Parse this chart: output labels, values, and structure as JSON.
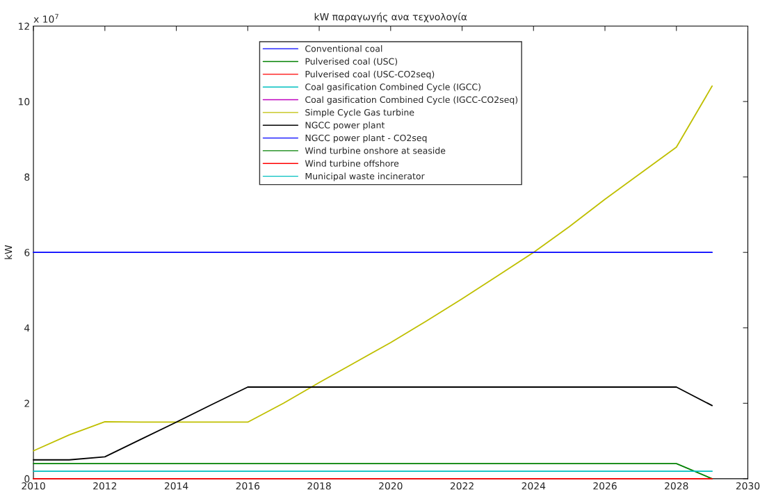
{
  "chart_data": {
    "type": "line",
    "title": "kW παραγωγής ανα τεχνολογία",
    "ylabel": "kW",
    "annotations": [
      "x 10$^{7}$"
    ],
    "x": [
      2010,
      2011,
      2012,
      2013,
      2014,
      2015,
      2016,
      2017,
      2018,
      2019,
      2020,
      2021,
      2022,
      2023,
      2024,
      2025,
      2026,
      2027,
      2028,
      2029
    ],
    "xlim": [
      2010,
      2030
    ],
    "xticks": [
      2010,
      2012,
      2014,
      2016,
      2018,
      2020,
      2022,
      2024,
      2026,
      2028,
      2030
    ],
    "ylim": [
      0,
      12
    ],
    "yticks": [
      0,
      2,
      4,
      6,
      8,
      10,
      12
    ],
    "grid": false,
    "legend": "top",
    "line_style": "solid",
    "marker": "none",
    "series": [
      {
        "name": "Conventional coal",
        "color": "#0000ff",
        "values": [
          null,
          null,
          null,
          null,
          null,
          null,
          null,
          null,
          null,
          null,
          null,
          null,
          null,
          null,
          null,
          null,
          null,
          null,
          null,
          null
        ]
      },
      {
        "name": "Pulverised coal (USC)",
        "color": "#008000",
        "values": [
          null,
          null,
          null,
          null,
          null,
          null,
          null,
          null,
          null,
          null,
          null,
          null,
          null,
          null,
          null,
          null,
          null,
          null,
          null,
          null
        ]
      },
      {
        "name": "Pulverised coal (USC-CO2seq)",
        "color": "#ff0000",
        "values": [
          null,
          null,
          null,
          null,
          null,
          null,
          null,
          null,
          null,
          null,
          null,
          null,
          null,
          null,
          null,
          null,
          null,
          null,
          null,
          null
        ]
      },
      {
        "name": "Coal gasification Combined Cycle (IGCC)",
        "color": "#00bfbf",
        "values": [
          null,
          null,
          null,
          null,
          null,
          null,
          null,
          null,
          null,
          null,
          null,
          null,
          null,
          null,
          null,
          null,
          null,
          null,
          null,
          null
        ]
      },
      {
        "name": "Coal gasification Combined Cycle (IGCC-CO2seq)",
        "color": "#bf00bf",
        "values": [
          null,
          null,
          null,
          null,
          null,
          null,
          null,
          null,
          null,
          null,
          null,
          null,
          null,
          null,
          null,
          null,
          null,
          null,
          null,
          null
        ]
      },
      {
        "name": "Simple Cycle Gas turbine",
        "color": "#bfbf00",
        "values": [
          0.74,
          1.16,
          1.51,
          1.5,
          1.5,
          1.5,
          1.5,
          2.0,
          2.55,
          3.08,
          3.61,
          4.18,
          4.77,
          5.38,
          6.0,
          6.68,
          7.41,
          8.1,
          8.79,
          10.41
        ]
      },
      {
        "name": "NGCC power plant",
        "color": "#000000",
        "values": [
          0.5,
          0.5,
          0.58,
          1.04,
          1.5,
          1.97,
          2.43,
          2.43,
          2.43,
          2.43,
          2.43,
          2.43,
          2.43,
          2.43,
          2.43,
          2.43,
          2.43,
          2.43,
          2.43,
          1.94
        ]
      },
      {
        "name": "NGCC power plant - CO2seq",
        "color": "#0000ff",
        "values": [
          6,
          6,
          6,
          6,
          6,
          6,
          6,
          6,
          6,
          6,
          6,
          6,
          6,
          6,
          6,
          6,
          6,
          6,
          6,
          6
        ]
      },
      {
        "name": "Wind turbine onshore at seaside",
        "color": "#008000",
        "values": [
          0.4,
          0.4,
          0.4,
          0.4,
          0.4,
          0.4,
          0.4,
          0.4,
          0.4,
          0.4,
          0.4,
          0.4,
          0.4,
          0.4,
          0.4,
          0.4,
          0.4,
          0.4,
          0.4,
          0
        ]
      },
      {
        "name": "Wind turbine offshore",
        "color": "#ff0000",
        "values": [
          0,
          0,
          0,
          0,
          0,
          0,
          0,
          0,
          0,
          0,
          0,
          0,
          0,
          0,
          0,
          0,
          0,
          0,
          0,
          0
        ]
      },
      {
        "name": "Municipal waste incinerator",
        "color": "#00bfbf",
        "values": [
          0.2,
          0.2,
          0.2,
          0.2,
          0.2,
          0.2,
          0.2,
          0.2,
          0.2,
          0.2,
          0.2,
          0.2,
          0.2,
          0.2,
          0.2,
          0.2,
          0.2,
          0.2,
          0.2,
          0.2
        ]
      }
    ]
  }
}
